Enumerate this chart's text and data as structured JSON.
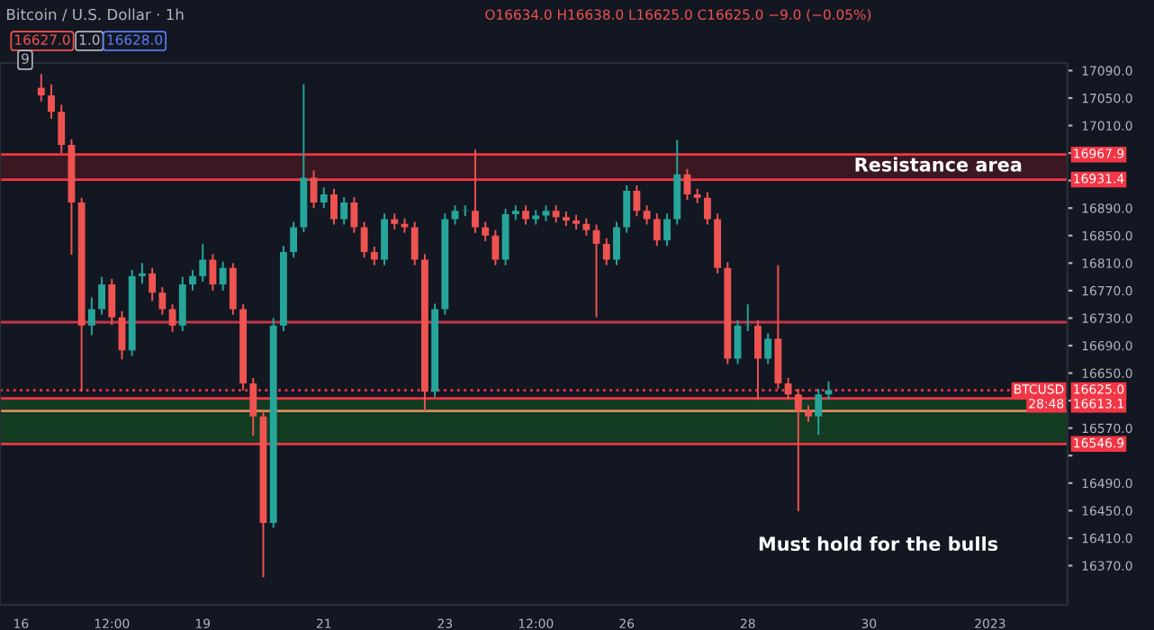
{
  "chart_data": {
    "type": "candlestick",
    "title": "Bitcoin / U.S. Dollar · 1h",
    "x": [
      "2022-12-16T08:00",
      "2022-12-16T12:00",
      "2022-12-16T16:00",
      "2022-12-16T20:00",
      "2022-12-17T00:00",
      "2022-12-17T04:00",
      "2022-12-17T08:00",
      "2022-12-17T12:00",
      "2022-12-17T16:00",
      "2022-12-17T20:00",
      "2022-12-18T00:00",
      "2022-12-18T04:00",
      "2022-12-18T08:00",
      "2022-12-18T12:00",
      "2022-12-18T16:00",
      "2022-12-18T20:00",
      "2022-12-19T00:00",
      "2022-12-19T04:00",
      "2022-12-19T08:00",
      "2022-12-19T12:00",
      "2022-12-19T16:00",
      "2022-12-19T20:00",
      "2022-12-20T00:00",
      "2022-12-20T04:00",
      "2022-12-20T08:00",
      "2022-12-20T12:00",
      "2022-12-20T16:00",
      "2022-12-20T20:00",
      "2022-12-21T00:00",
      "2022-12-21T04:00",
      "2022-12-21T08:00",
      "2022-12-21T12:00",
      "2022-12-21T16:00",
      "2022-12-21T20:00",
      "2022-12-22T00:00",
      "2022-12-22T04:00",
      "2022-12-22T08:00",
      "2022-12-22T12:00",
      "2022-12-22T16:00",
      "2022-12-22T20:00",
      "2022-12-23T00:00",
      "2022-12-23T04:00",
      "2022-12-23T08:00",
      "2022-12-23T12:00",
      "2022-12-23T16:00",
      "2022-12-23T20:00",
      "2022-12-24T00:00",
      "2022-12-24T04:00",
      "2022-12-24T08:00",
      "2022-12-24T12:00",
      "2022-12-24T16:00",
      "2022-12-24T20:00",
      "2022-12-25T00:00",
      "2022-12-25T04:00",
      "2022-12-25T08:00",
      "2022-12-25T12:00",
      "2022-12-25T16:00",
      "2022-12-25T20:00",
      "2022-12-26T00:00",
      "2022-12-26T04:00",
      "2022-12-26T08:00",
      "2022-12-26T12:00",
      "2022-12-26T16:00",
      "2022-12-26T20:00",
      "2022-12-27T00:00",
      "2022-12-27T04:00",
      "2022-12-27T08:00",
      "2022-12-27T12:00",
      "2022-12-27T16:00",
      "2022-12-27T20:00",
      "2022-12-28T00:00",
      "2022-12-28T04:00",
      "2022-12-28T08:00",
      "2022-12-28T12:00",
      "2022-12-28T16:00",
      "2022-12-28T20:00",
      "2022-12-29T00:00",
      "2022-12-29T04:00",
      "2022-12-29T08:00"
    ],
    "ohlc": [
      [
        17065,
        17085,
        17045,
        17054
      ],
      [
        17054,
        17070,
        17020,
        17030
      ],
      [
        17030,
        17040,
        16970,
        16982
      ],
      [
        16982,
        16990,
        16822,
        16898
      ],
      [
        16898,
        16905,
        16623,
        16719
      ],
      [
        16719,
        16760,
        16705,
        16743
      ],
      [
        16743,
        16790,
        16735,
        16779
      ],
      [
        16779,
        16787,
        16720,
        16731
      ],
      [
        16731,
        16740,
        16670,
        16683
      ],
      [
        16683,
        16800,
        16675,
        16791
      ],
      [
        16791,
        16810,
        16780,
        16795
      ],
      [
        16795,
        16803,
        16755,
        16767
      ],
      [
        16767,
        16775,
        16735,
        16743
      ],
      [
        16743,
        16750,
        16710,
        16719
      ],
      [
        16719,
        16790,
        16711,
        16779
      ],
      [
        16779,
        16800,
        16770,
        16791
      ],
      [
        16791,
        16838,
        16783,
        16815
      ],
      [
        16815,
        16823,
        16770,
        16779
      ],
      [
        16779,
        16812,
        16770,
        16803
      ],
      [
        16803,
        16810,
        16735,
        16743
      ],
      [
        16743,
        16750,
        16625,
        16635
      ],
      [
        16635,
        16643,
        16559,
        16587
      ],
      [
        16587,
        16595,
        16353,
        16432
      ],
      [
        16432,
        16730,
        16425,
        16719
      ],
      [
        16719,
        16835,
        16711,
        16826
      ],
      [
        16826,
        16870,
        16818,
        16862
      ],
      [
        16862,
        17070,
        16855,
        16934
      ],
      [
        16934,
        16945,
        16890,
        16898
      ],
      [
        16898,
        16920,
        16890,
        16910
      ],
      [
        16910,
        16918,
        16866,
        16874
      ],
      [
        16874,
        16906,
        16866,
        16898
      ],
      [
        16898,
        16906,
        16854,
        16862
      ],
      [
        16862,
        16870,
        16818,
        16826
      ],
      [
        16826,
        16834,
        16807,
        16815
      ],
      [
        16815,
        16882,
        16807,
        16874
      ],
      [
        16874,
        16882,
        16859,
        16867
      ],
      [
        16867,
        16875,
        16854,
        16862
      ],
      [
        16862,
        16870,
        16807,
        16815
      ],
      [
        16815,
        16823,
        16595,
        16623
      ],
      [
        16623,
        16751,
        16615,
        16743
      ],
      [
        16743,
        16882,
        16735,
        16874
      ],
      [
        16874,
        16894,
        16866,
        16886
      ],
      [
        16886,
        16894,
        16878,
        16886
      ],
      [
        16886,
        16975,
        16854,
        16862
      ],
      [
        16862,
        16870,
        16842,
        16850
      ],
      [
        16850,
        16858,
        16807,
        16815
      ],
      [
        16815,
        16889,
        16807,
        16881
      ],
      [
        16881,
        16894,
        16873,
        16886
      ],
      [
        16886,
        16894,
        16866,
        16874
      ],
      [
        16874,
        16887,
        16866,
        16879
      ],
      [
        16879,
        16894,
        16871,
        16886
      ],
      [
        16886,
        16894,
        16869,
        16877
      ],
      [
        16877,
        16885,
        16864,
        16872
      ],
      [
        16872,
        16880,
        16859,
        16867
      ],
      [
        16867,
        16875,
        16850,
        16858
      ],
      [
        16858,
        16866,
        16731,
        16838
      ],
      [
        16838,
        16846,
        16807,
        16815
      ],
      [
        16815,
        16870,
        16807,
        16862
      ],
      [
        16862,
        16923,
        16854,
        16915
      ],
      [
        16915,
        16923,
        16878,
        16886
      ],
      [
        16886,
        16894,
        16866,
        16874
      ],
      [
        16874,
        16882,
        16835,
        16843
      ],
      [
        16843,
        16882,
        16835,
        16874
      ],
      [
        16874,
        16989,
        16866,
        16939
      ],
      [
        16939,
        16947,
        16902,
        16910
      ],
      [
        16910,
        16918,
        16897,
        16905
      ],
      [
        16905,
        16913,
        16866,
        16874
      ],
      [
        16874,
        16882,
        16795,
        16803
      ],
      [
        16803,
        16811,
        16663,
        16671
      ],
      [
        16671,
        16727,
        16663,
        16719
      ],
      [
        16719,
        16750,
        16711,
        16719
      ],
      [
        16719,
        16727,
        16611,
        16671
      ],
      [
        16671,
        16708,
        16663,
        16700
      ],
      [
        16700,
        16807,
        16627,
        16635
      ],
      [
        16635,
        16643,
        16611,
        16619
      ],
      [
        16619,
        16627,
        16449,
        16595
      ],
      [
        16595,
        16603,
        16579,
        16587
      ],
      [
        16587,
        16627,
        16560,
        16619
      ],
      [
        16619,
        16638,
        16611,
        16625
      ]
    ],
    "colors": [
      "#ef5350",
      "#ef5350",
      "#ef5350",
      "#ef5350",
      "#ef5350",
      "#26a69a",
      "#26a69a",
      "#ef5350",
      "#ef5350",
      "#26a69a",
      "#26a69a",
      "#ef5350",
      "#ef5350",
      "#ef5350",
      "#26a69a",
      "#26a69a",
      "#26a69a",
      "#ef5350",
      "#26a69a",
      "#ef5350",
      "#ef5350",
      "#ef5350",
      "#ef5350",
      "#26a69a",
      "#26a69a",
      "#26a69a",
      "#26a69a",
      "#ef5350",
      "#26a69a",
      "#ef5350",
      "#26a69a",
      "#ef5350",
      "#ef5350",
      "#ef5350",
      "#26a69a",
      "#ef5350",
      "#ef5350",
      "#ef5350",
      "#ef5350",
      "#26a69a",
      "#26a69a",
      "#26a69a",
      "#26a69a",
      "#ef5350",
      "#ef5350",
      "#ef5350",
      "#26a69a",
      "#26a69a",
      "#ef5350",
      "#26a69a",
      "#26a69a",
      "#ef5350",
      "#ef5350",
      "#ef5350",
      "#ef5350",
      "#ef5350",
      "#ef5350",
      "#26a69a",
      "#26a69a",
      "#ef5350",
      "#ef5350",
      "#ef5350",
      "#26a69a",
      "#26a69a",
      "#ef5350",
      "#ef5350",
      "#ef5350",
      "#ef5350",
      "#ef5350",
      "#26a69a",
      "#26a69a",
      "#ef5350",
      "#26a69a",
      "#ef5350",
      "#ef5350",
      "#ef5350",
      "#ef5350",
      "#26a69a",
      "#26a69a"
    ],
    "xlim": [
      "2022-12-15T15:40",
      "2023-01-02T06:40"
    ],
    "xticks": [
      {
        "value": "2022-12-16T00:00",
        "label": "16"
      },
      {
        "value": "2022-12-17T12:00",
        "label": "12:00"
      },
      {
        "value": "2022-12-19T00:00",
        "label": "19"
      },
      {
        "value": "2022-12-21T00:00",
        "label": "21"
      },
      {
        "value": "2022-12-23T00:00",
        "label": "23"
      },
      {
        "value": "2022-12-24T12:00",
        "label": "12:00"
      },
      {
        "value": "2022-12-26T00:00",
        "label": "26"
      },
      {
        "value": "2022-12-28T00:00",
        "label": "28"
      },
      {
        "value": "2022-12-30T00:00",
        "label": "30"
      },
      {
        "value": "2023-01-01T00:00",
        "label": "2023"
      }
    ],
    "ylim": [
      16313,
      17101
    ],
    "yticks": [
      {
        "value": 16370,
        "label": "16370.0"
      },
      {
        "value": 16410,
        "label": "16410.0"
      },
      {
        "value": 16450,
        "label": "16450.0"
      },
      {
        "value": 16490,
        "label": "16490.0"
      },
      {
        "value": 16530,
        "label": null
      },
      {
        "value": 16570,
        "label": "16570.0"
      },
      {
        "value": 16610,
        "label": null
      },
      {
        "value": 16650,
        "label": "16650.0"
      },
      {
        "value": 16690,
        "label": "16690.0"
      },
      {
        "value": 16730,
        "label": "16730.0"
      },
      {
        "value": 16770,
        "label": "16770.0"
      },
      {
        "value": 16810,
        "label": "16810.0"
      },
      {
        "value": 16850,
        "label": "16850.0"
      },
      {
        "value": 16890,
        "label": "16890.0"
      },
      {
        "value": 16930,
        "label": null
      },
      {
        "value": 16970,
        "label": null
      },
      {
        "value": 17010,
        "label": "17010.0"
      },
      {
        "value": 17050,
        "label": "17050.0"
      },
      {
        "value": 17090,
        "label": "17090.0"
      }
    ],
    "bands": [
      {
        "axis": "y",
        "from": 16931.4,
        "to": 16967.9,
        "color": "#3a1822"
      },
      {
        "axis": "y",
        "from": 16546.9,
        "to": 16613.1,
        "color": "#123b22"
      }
    ],
    "ref_lines": [
      {
        "axis": "y",
        "value": 16967.9,
        "label": "16967.9",
        "color": "#f23645",
        "line_style": "solid"
      },
      {
        "axis": "y",
        "value": 16931.4,
        "label": "16931.4",
        "color": "#f23645",
        "line_style": "solid"
      },
      {
        "axis": "y",
        "value": 16724,
        "color": "#c2364a",
        "line_style": "solid"
      },
      {
        "axis": "y",
        "value": 16625,
        "label": "16625.0",
        "color": "#f23645",
        "line_style": "dotted"
      },
      {
        "axis": "y",
        "value": 16613.1,
        "label": "16613.1",
        "color": "#f23645",
        "line_style": "solid"
      },
      {
        "axis": "y",
        "value": 16595,
        "color": "#d98c5f",
        "line_style": "solid"
      },
      {
        "axis": "y",
        "value": 16546.9,
        "label": "16546.9",
        "color": "#f23645",
        "line_style": "solid"
      }
    ],
    "annotations": [
      "O16634.0 H16638.0 L16625.0 C16625.0 −9.0 (−0.05%)",
      "16627.0",
      "1.0",
      "16628.0",
      "9",
      "Resistance area",
      "Must hold for the bulls",
      "BTCUSD",
      "28:48"
    ],
    "grid": false
  }
}
